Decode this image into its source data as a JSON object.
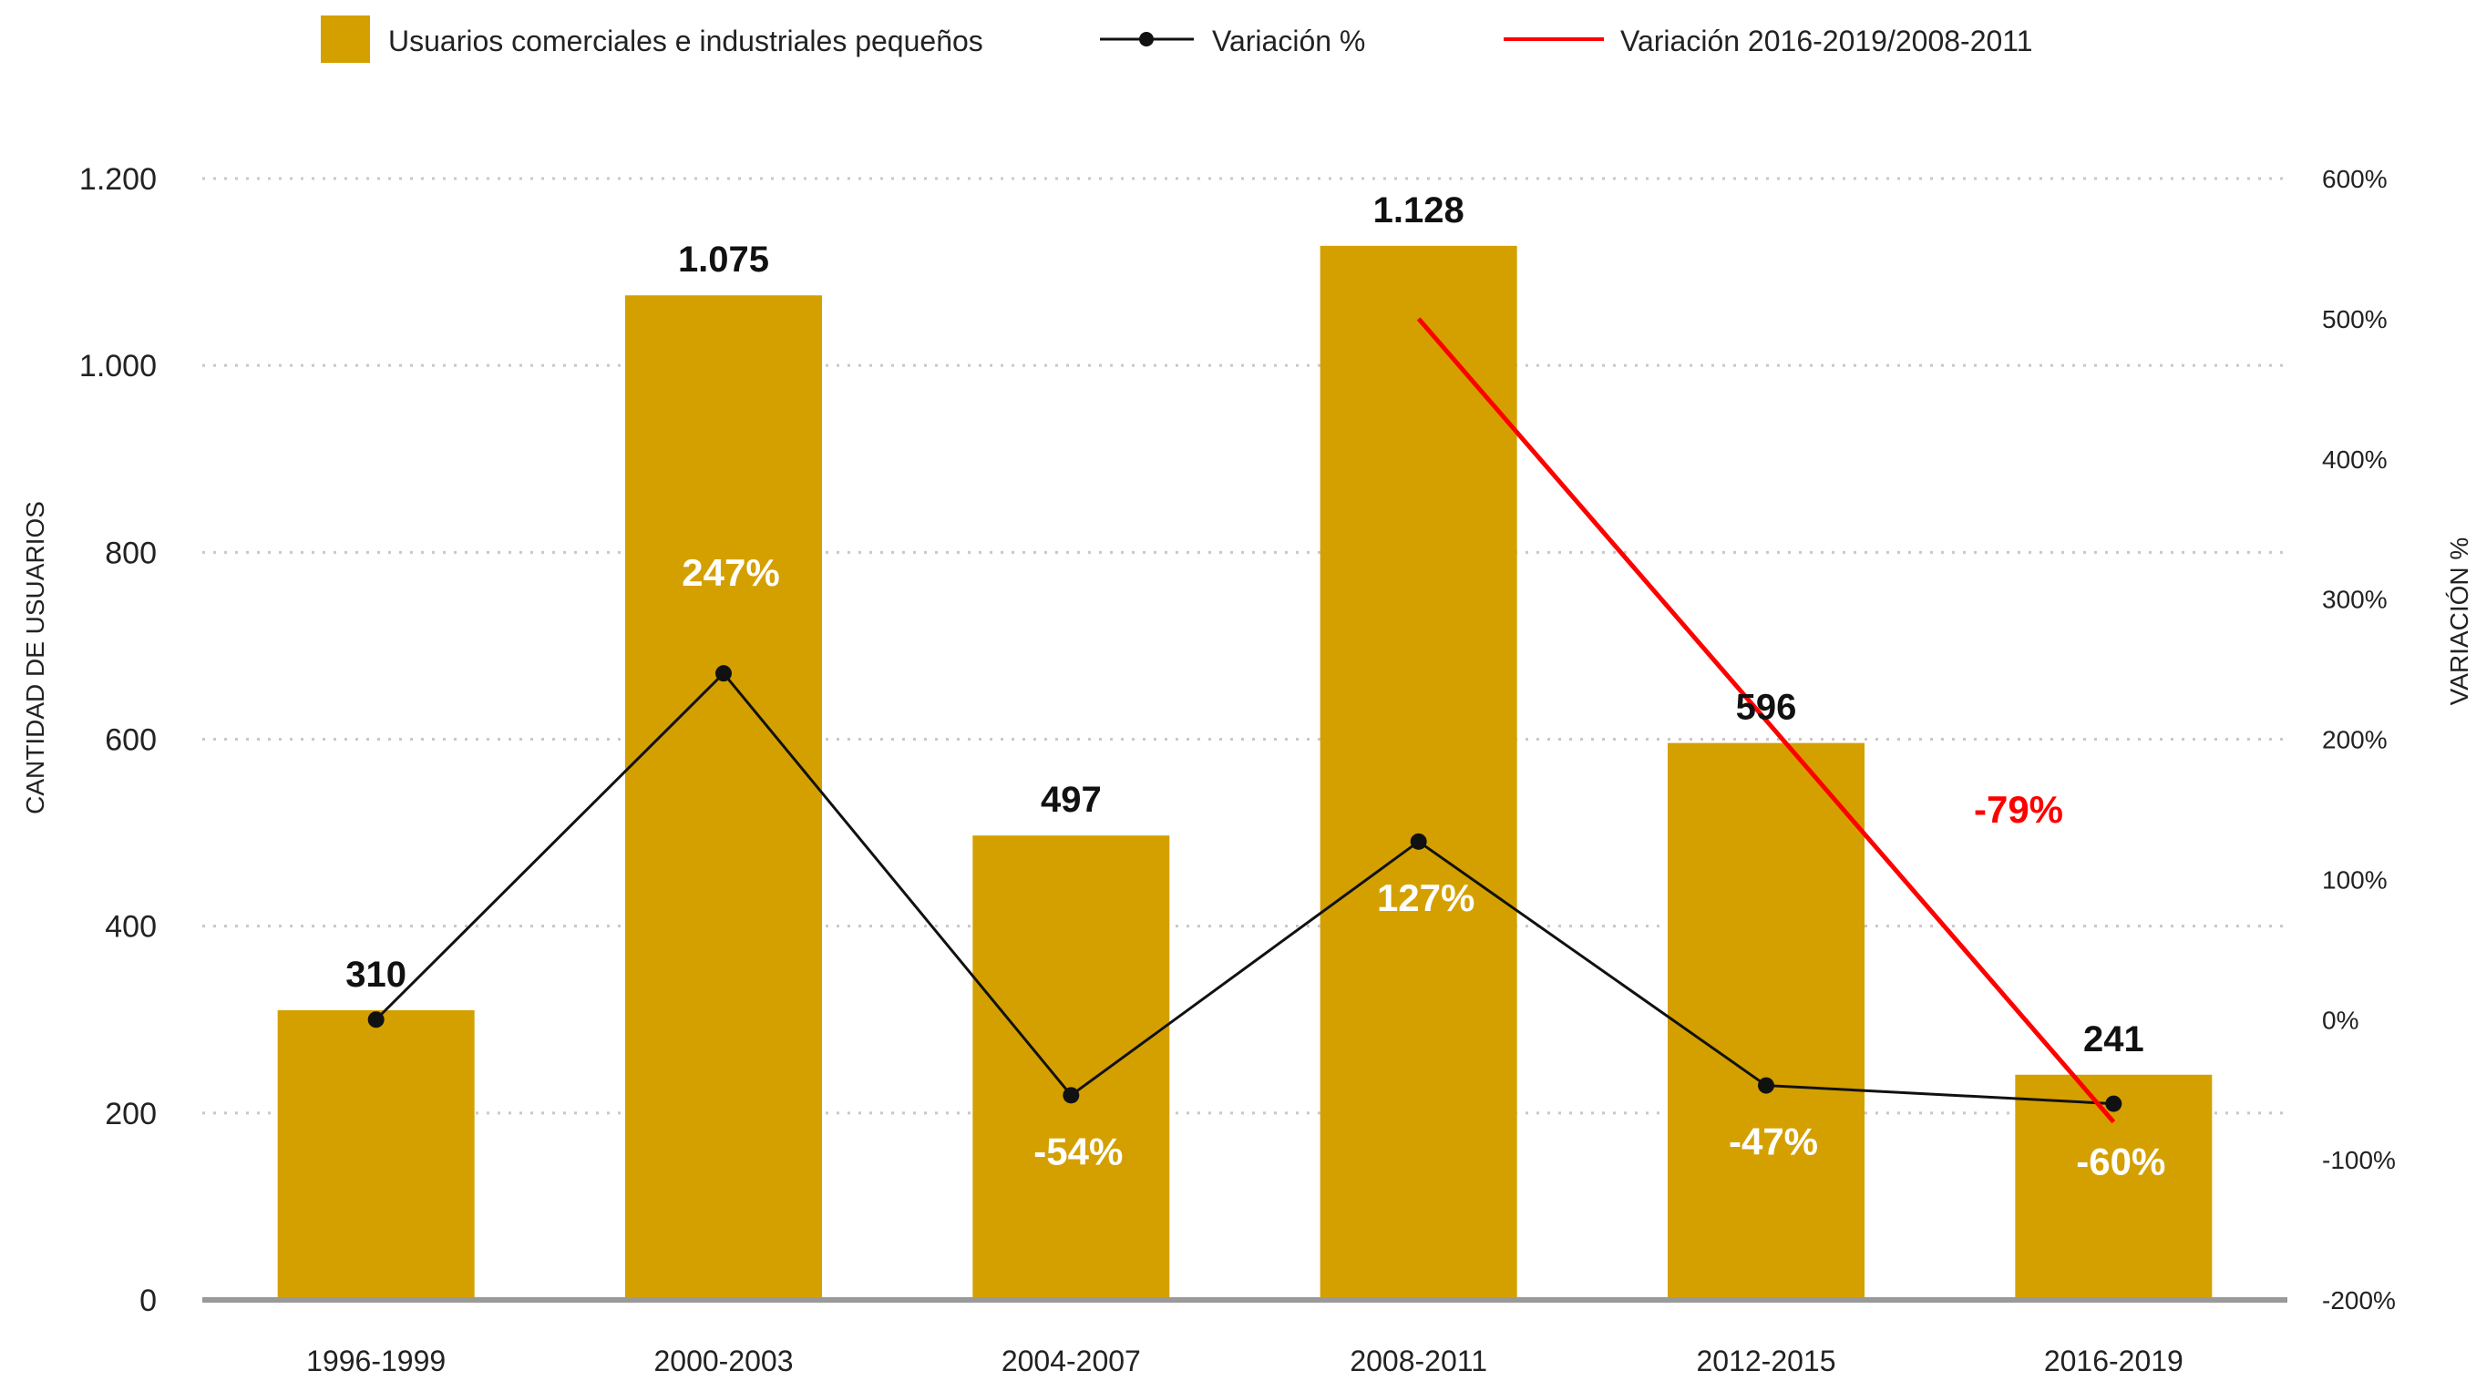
{
  "legend": {
    "bars_label": "Usuarios comerciales e industriales pequeños",
    "line_label": "Variación %",
    "trend_label": "Variación 2016-2019/2008-2011"
  },
  "colors": {
    "bar": "#D4A000",
    "line": "#111111",
    "trend": "#FF0000",
    "grid": "#C8C8C8",
    "axis": "#999999",
    "pct_text": "#FFFFFF"
  },
  "chart_data": {
    "type": "bar",
    "categories": [
      "1996-1999",
      "2000-2003",
      "2004-2007",
      "2008-2011",
      "2012-2015",
      "2016-2019"
    ],
    "series": [
      {
        "name": "Usuarios comerciales e industriales pequeños",
        "values": [
          310,
          1075,
          497,
          1128,
          596,
          241
        ],
        "value_labels": [
          "310",
          "1.075",
          "497",
          "1.128",
          "596",
          "241"
        ],
        "axis": "left"
      },
      {
        "name": "Variación %",
        "type": "line",
        "values": [
          0,
          247,
          -54,
          127,
          -47,
          -60
        ],
        "value_labels": [
          "",
          "247%",
          "-54%",
          "127%",
          "-47%",
          "-60%"
        ],
        "axis": "right"
      },
      {
        "name": "Variación 2016-2019/2008-2011",
        "type": "line",
        "from": {
          "category": "2008-2011",
          "value": 500
        },
        "to": {
          "category": "2016-2019",
          "value": -73
        },
        "axis": "right"
      }
    ],
    "annotation": {
      "text": "-79%",
      "color": "#FF0000",
      "near_category": "2012-2015"
    },
    "ylabel": "CANTIDAD DE USUARIOS",
    "ylim": [
      0,
      1200
    ],
    "y_ticks": [
      0,
      200,
      400,
      600,
      800,
      1000,
      1200
    ],
    "y_tick_labels": [
      "0",
      "200",
      "400",
      "600",
      "800",
      "1.000",
      "1.200"
    ],
    "y2label": "VARIACIÓN %",
    "y2lim": [
      -200,
      600
    ],
    "y2_ticks": [
      -200,
      -100,
      0,
      100,
      200,
      300,
      400,
      500,
      600
    ],
    "y2_tick_labels": [
      "-200%",
      "-100%",
      "0%",
      "100%",
      "200%",
      "300%",
      "400%",
      "500%",
      "600%"
    ],
    "grid": true,
    "legend_position": "top"
  }
}
